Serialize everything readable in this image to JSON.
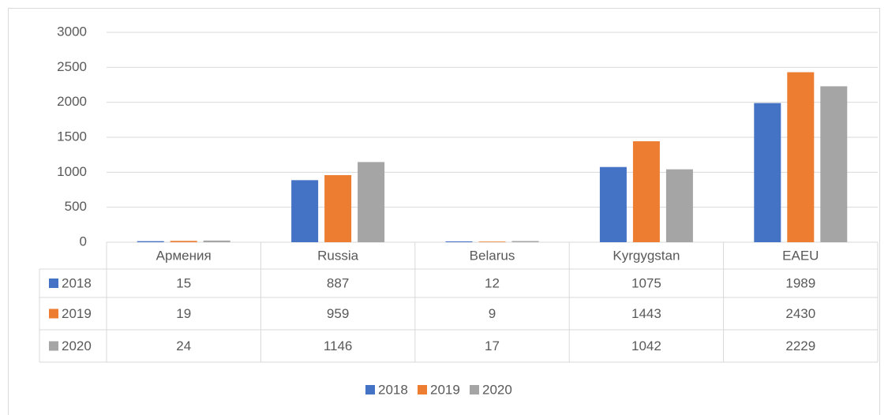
{
  "chart_data": {
    "type": "bar",
    "categories": [
      "Армения",
      "Russia",
      "Belarus",
      "Kyrgygstan",
      "EAEU"
    ],
    "series": [
      {
        "name": "2018",
        "color": "#4472c4",
        "values": [
          15,
          887,
          12,
          1075,
          1989
        ]
      },
      {
        "name": "2019",
        "color": "#ed7d31",
        "values": [
          19,
          959,
          9,
          1443,
          2430
        ]
      },
      {
        "name": "2020",
        "color": "#a5a5a5",
        "values": [
          24,
          1146,
          17,
          1042,
          2229
        ]
      }
    ],
    "ylim": [
      0,
      3000
    ],
    "yticks": [
      0,
      500,
      1000,
      1500,
      2000,
      2500,
      3000
    ],
    "grid": true,
    "legend": "bottom"
  }
}
